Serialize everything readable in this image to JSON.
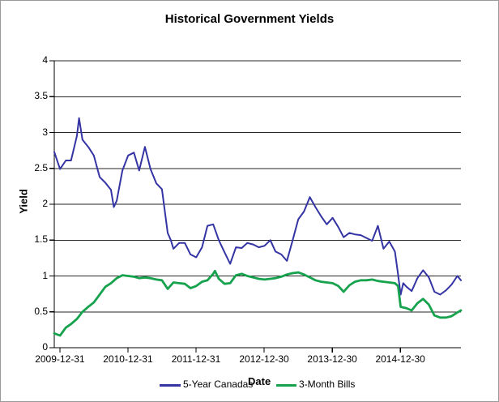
{
  "accent_colors": {
    "series1": "#3434a4",
    "series2": "#17a24e",
    "grid": "#262626",
    "axis": "#000000",
    "frame_border": "#999999"
  },
  "chart_data": {
    "type": "line",
    "title": "Historical Government Yields",
    "xlabel": "Date",
    "ylabel": "Yield",
    "ylim": [
      0,
      4
    ],
    "y_ticks": [
      0,
      0.5,
      1,
      1.5,
      2,
      2.5,
      3,
      3.5,
      4
    ],
    "x_ticks": [
      "2009-12-31",
      "2010-12-31",
      "2011-12-31",
      "2012-12-30",
      "2013-12-30",
      "2014-12-30"
    ],
    "x_range": [
      "2009-12-01",
      "2015-11-20"
    ],
    "grid": "horizontal",
    "legend_position": "bottom",
    "series": [
      {
        "name": "5-Year Canadas",
        "color": "#3434a4",
        "points": [
          [
            "2009-12-01",
            2.73
          ],
          [
            "2010-01-01",
            2.49
          ],
          [
            "2010-02-01",
            2.61
          ],
          [
            "2010-03-01",
            2.61
          ],
          [
            "2010-04-01",
            2.95
          ],
          [
            "2010-04-13",
            3.2
          ],
          [
            "2010-05-01",
            2.9
          ],
          [
            "2010-06-01",
            2.8
          ],
          [
            "2010-07-01",
            2.68
          ],
          [
            "2010-08-01",
            2.38
          ],
          [
            "2010-09-01",
            2.3
          ],
          [
            "2010-10-01",
            2.2
          ],
          [
            "2010-10-16",
            1.96
          ],
          [
            "2010-11-01",
            2.05
          ],
          [
            "2010-12-01",
            2.47
          ],
          [
            "2011-01-01",
            2.68
          ],
          [
            "2011-02-01",
            2.72
          ],
          [
            "2011-03-01",
            2.47
          ],
          [
            "2011-04-01",
            2.8
          ],
          [
            "2011-05-01",
            2.49
          ],
          [
            "2011-06-01",
            2.29
          ],
          [
            "2011-07-01",
            2.21
          ],
          [
            "2011-08-01",
            1.6
          ],
          [
            "2011-08-18",
            1.5
          ],
          [
            "2011-09-01",
            1.38
          ],
          [
            "2011-10-01",
            1.46
          ],
          [
            "2011-11-01",
            1.46
          ],
          [
            "2011-12-01",
            1.3
          ],
          [
            "2012-01-01",
            1.26
          ],
          [
            "2012-02-01",
            1.4
          ],
          [
            "2012-03-01",
            1.7
          ],
          [
            "2012-04-01",
            1.72
          ],
          [
            "2012-05-01",
            1.5
          ],
          [
            "2012-06-01",
            1.33
          ],
          [
            "2012-07-01",
            1.17
          ],
          [
            "2012-08-01",
            1.4
          ],
          [
            "2012-09-01",
            1.39
          ],
          [
            "2012-10-01",
            1.46
          ],
          [
            "2012-11-01",
            1.44
          ],
          [
            "2012-12-01",
            1.4
          ],
          [
            "2013-01-01",
            1.42
          ],
          [
            "2013-02-01",
            1.5
          ],
          [
            "2013-03-01",
            1.34
          ],
          [
            "2013-04-01",
            1.3
          ],
          [
            "2013-05-01",
            1.21
          ],
          [
            "2013-06-01",
            1.5
          ],
          [
            "2013-07-01",
            1.79
          ],
          [
            "2013-08-01",
            1.9
          ],
          [
            "2013-09-01",
            2.1
          ],
          [
            "2013-10-01",
            1.96
          ],
          [
            "2013-11-01",
            1.83
          ],
          [
            "2013-12-01",
            1.72
          ],
          [
            "2014-01-01",
            1.81
          ],
          [
            "2014-02-01",
            1.68
          ],
          [
            "2014-03-01",
            1.54
          ],
          [
            "2014-04-01",
            1.6
          ],
          [
            "2014-05-01",
            1.58
          ],
          [
            "2014-06-01",
            1.57
          ],
          [
            "2014-07-01",
            1.53
          ],
          [
            "2014-08-01",
            1.49
          ],
          [
            "2014-09-01",
            1.7
          ],
          [
            "2014-10-01",
            1.38
          ],
          [
            "2014-11-01",
            1.48
          ],
          [
            "2014-12-01",
            1.34
          ],
          [
            "2014-12-15",
            1.08
          ],
          [
            "2015-01-01",
            0.74
          ],
          [
            "2015-01-15",
            0.9
          ],
          [
            "2015-02-01",
            0.85
          ],
          [
            "2015-03-01",
            0.79
          ],
          [
            "2015-04-01",
            0.97
          ],
          [
            "2015-05-01",
            1.08
          ],
          [
            "2015-06-01",
            0.98
          ],
          [
            "2015-07-01",
            0.78
          ],
          [
            "2015-08-01",
            0.74
          ],
          [
            "2015-09-01",
            0.8
          ],
          [
            "2015-10-01",
            0.88
          ],
          [
            "2015-11-01",
            1.0
          ],
          [
            "2015-11-20",
            0.94
          ]
        ]
      },
      {
        "name": "3-Month Bills",
        "color": "#17a24e",
        "points": [
          [
            "2009-12-01",
            0.2
          ],
          [
            "2010-01-01",
            0.17
          ],
          [
            "2010-02-01",
            0.28
          ],
          [
            "2010-03-01",
            0.33
          ],
          [
            "2010-04-01",
            0.4
          ],
          [
            "2010-05-01",
            0.5
          ],
          [
            "2010-06-01",
            0.57
          ],
          [
            "2010-07-01",
            0.63
          ],
          [
            "2010-08-01",
            0.74
          ],
          [
            "2010-09-01",
            0.85
          ],
          [
            "2010-10-01",
            0.9
          ],
          [
            "2010-11-01",
            0.97
          ],
          [
            "2010-12-01",
            1.01
          ],
          [
            "2011-01-01",
            1.0
          ],
          [
            "2011-02-01",
            0.99
          ],
          [
            "2011-03-01",
            0.97
          ],
          [
            "2011-04-01",
            0.98
          ],
          [
            "2011-05-01",
            0.97
          ],
          [
            "2011-06-01",
            0.95
          ],
          [
            "2011-07-01",
            0.94
          ],
          [
            "2011-08-01",
            0.82
          ],
          [
            "2011-09-01",
            0.91
          ],
          [
            "2011-10-01",
            0.9
          ],
          [
            "2011-11-01",
            0.89
          ],
          [
            "2011-12-01",
            0.83
          ],
          [
            "2012-01-01",
            0.86
          ],
          [
            "2012-02-01",
            0.92
          ],
          [
            "2012-03-01",
            0.94
          ],
          [
            "2012-04-01",
            1.03
          ],
          [
            "2012-04-10",
            1.07
          ],
          [
            "2012-05-01",
            0.96
          ],
          [
            "2012-06-01",
            0.89
          ],
          [
            "2012-07-01",
            0.9
          ],
          [
            "2012-08-01",
            1.01
          ],
          [
            "2012-09-01",
            1.03
          ],
          [
            "2012-10-01",
            1.0
          ],
          [
            "2012-11-01",
            0.98
          ],
          [
            "2012-12-01",
            0.96
          ],
          [
            "2013-01-01",
            0.95
          ],
          [
            "2013-02-01",
            0.96
          ],
          [
            "2013-03-01",
            0.97
          ],
          [
            "2013-04-01",
            0.99
          ],
          [
            "2013-05-01",
            1.02
          ],
          [
            "2013-06-01",
            1.04
          ],
          [
            "2013-07-01",
            1.05
          ],
          [
            "2013-08-01",
            1.02
          ],
          [
            "2013-09-01",
            0.98
          ],
          [
            "2013-10-01",
            0.94
          ],
          [
            "2013-11-01",
            0.92
          ],
          [
            "2013-12-01",
            0.91
          ],
          [
            "2014-01-01",
            0.9
          ],
          [
            "2014-02-01",
            0.86
          ],
          [
            "2014-03-01",
            0.78
          ],
          [
            "2014-04-01",
            0.87
          ],
          [
            "2014-05-01",
            0.92
          ],
          [
            "2014-06-01",
            0.94
          ],
          [
            "2014-07-01",
            0.94
          ],
          [
            "2014-08-01",
            0.95
          ],
          [
            "2014-09-01",
            0.93
          ],
          [
            "2014-10-01",
            0.92
          ],
          [
            "2014-11-01",
            0.91
          ],
          [
            "2014-12-01",
            0.9
          ],
          [
            "2014-12-18",
            0.86
          ],
          [
            "2015-01-01",
            0.57
          ],
          [
            "2015-02-01",
            0.55
          ],
          [
            "2015-03-01",
            0.52
          ],
          [
            "2015-04-01",
            0.62
          ],
          [
            "2015-05-01",
            0.68
          ],
          [
            "2015-06-01",
            0.6
          ],
          [
            "2015-07-01",
            0.45
          ],
          [
            "2015-08-01",
            0.42
          ],
          [
            "2015-09-01",
            0.42
          ],
          [
            "2015-10-01",
            0.44
          ],
          [
            "2015-11-01",
            0.49
          ],
          [
            "2015-11-20",
            0.52
          ]
        ]
      }
    ]
  }
}
